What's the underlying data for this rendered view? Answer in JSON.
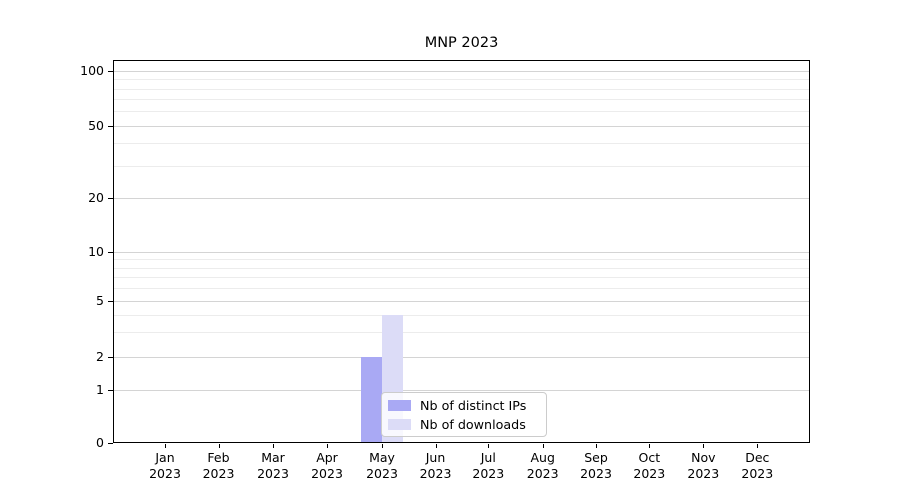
{
  "chart_data": {
    "type": "bar",
    "title": "MNP 2023",
    "categories": [
      "Jan 2023",
      "Feb 2023",
      "Mar 2023",
      "Apr 2023",
      "May 2023",
      "Jun 2023",
      "Jul 2023",
      "Aug 2023",
      "Sep 2023",
      "Oct 2023",
      "Nov 2023",
      "Dec 2023"
    ],
    "series": [
      {
        "name": "Nb of distinct IPs",
        "color": "#a9a9f4",
        "values": [
          0,
          0,
          0,
          0,
          2,
          0,
          0,
          0,
          0,
          0,
          0,
          0
        ]
      },
      {
        "name": "Nb of downloads",
        "color": "#dcdcf7",
        "values": [
          0,
          0,
          0,
          0,
          4,
          0,
          0,
          0,
          0,
          0,
          0,
          0
        ]
      }
    ],
    "y_ticks": [
      0,
      1,
      2,
      5,
      10,
      20,
      50,
      100
    ],
    "y_scale": "symlog",
    "ylim": [
      0,
      115
    ],
    "xlabel": "",
    "ylabel": "",
    "grid": "horizontal major and minor",
    "legend_position": "inside lower-center"
  }
}
